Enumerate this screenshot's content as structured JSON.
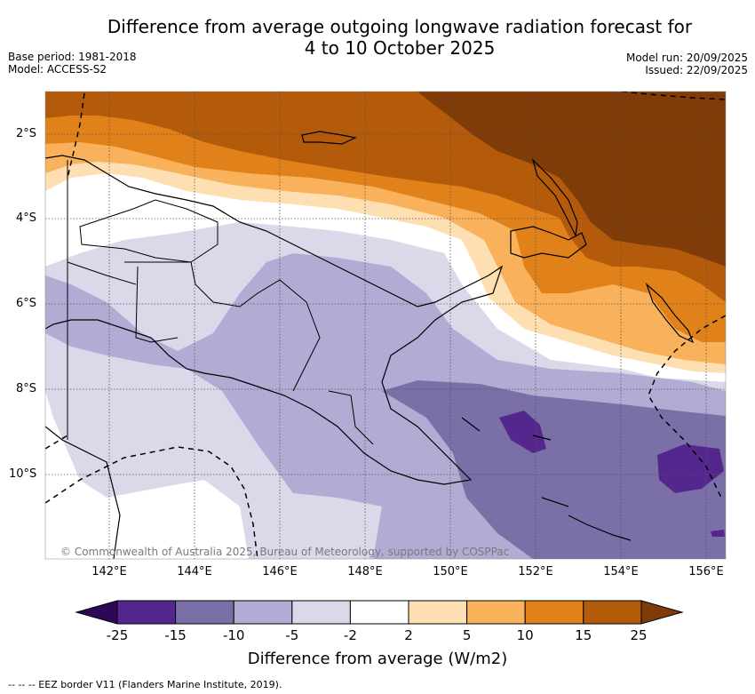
{
  "title_line1": "Difference from average outgoing longwave radiation forecast for",
  "title_line2": "4 to 10 October 2025",
  "base_period": "Base period: 1981-2018",
  "model": "Model: ACCESS-S2",
  "model_run": "Model run: 20/09/2025",
  "issued": "Issued: 22/09/2025",
  "lat_ticks": [
    "2°S",
    "4°S",
    "6°S",
    "8°S",
    "10°S"
  ],
  "lon_ticks": [
    "142°E",
    "144°E",
    "146°E",
    "148°E",
    "150°E",
    "152°E",
    "154°E",
    "156°E"
  ],
  "colorbar_labels": [
    "-25",
    "-15",
    "-10",
    "-5",
    "-2",
    "2",
    "5",
    "10",
    "15",
    "25"
  ],
  "colorbar_title": "Difference from average (W/m2)",
  "copyright": "© Commonwealth of Australia 2025, Bureau of Meteorology, supported by COSPPac",
  "footer_legend": "-- -- -- EEZ border V11 (Flanders Marine Institute, 2019).",
  "colors": {
    "lt_minus25": "#2e0854",
    "m25_m15": "#54278f",
    "m15_m10": "#7b6fa8",
    "m10_m5": "#b1acd3",
    "m5_m2": "#d9d9ea",
    "m2_p2": "#ffffff",
    "p2_p5": "#fedfb2",
    "p5_p10": "#f9b15b",
    "p10_p15": "#e08219",
    "p15_p25": "#b35a0b",
    "gt_p25": "#7f3b08"
  }
}
